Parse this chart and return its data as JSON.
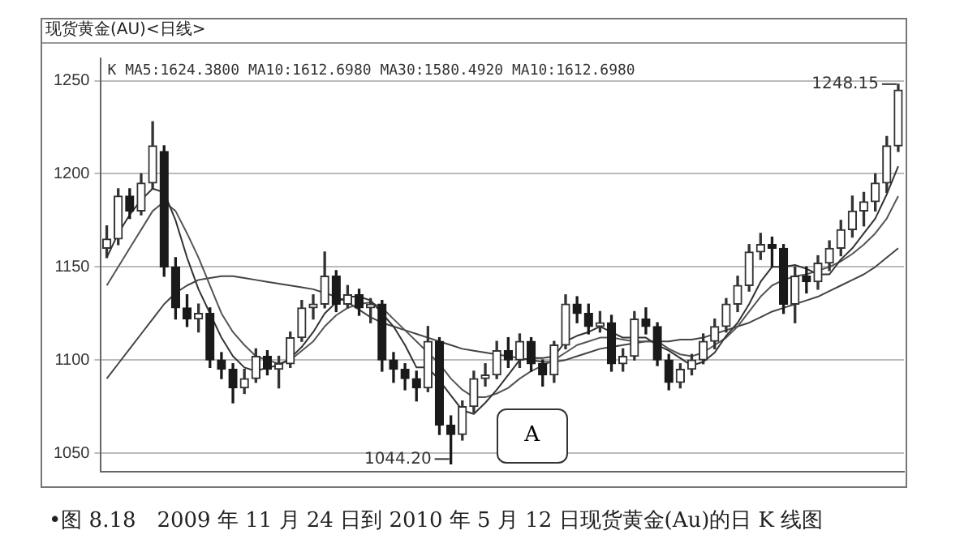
{
  "chart_data": {
    "type": "candlestick",
    "title": "现货黄金(AU)<日线>",
    "categories": [
      null,
      null,
      null,
      null,
      null,
      null,
      null,
      null,
      null,
      null,
      null,
      null,
      null,
      null,
      null,
      null,
      null,
      null,
      null,
      null,
      null,
      null,
      null,
      null,
      null,
      null,
      null,
      null,
      null,
      null,
      null,
      null,
      null,
      null,
      null,
      null,
      null,
      null,
      null,
      null,
      null,
      null,
      null,
      null,
      null,
      null,
      null,
      null,
      null,
      null,
      null,
      null,
      null,
      null,
      null,
      null,
      null,
      null,
      null,
      null,
      null,
      null,
      null,
      null,
      null,
      null,
      null,
      null,
      null,
      null
    ],
    "ohlc": [
      [
        1160,
        1172,
        1155,
        1165
      ],
      [
        1165,
        1192,
        1162,
        1188
      ],
      [
        1188,
        1192,
        1176,
        1180
      ],
      [
        1180,
        1200,
        1178,
        1195
      ],
      [
        1195,
        1228,
        1192,
        1215
      ],
      [
        1212,
        1215,
        1145,
        1150
      ],
      [
        1150,
        1155,
        1122,
        1128
      ],
      [
        1128,
        1135,
        1118,
        1122
      ],
      [
        1122,
        1130,
        1115,
        1125
      ],
      [
        1125,
        1128,
        1096,
        1100
      ],
      [
        1100,
        1104,
        1090,
        1095
      ],
      [
        1095,
        1098,
        1077,
        1085
      ],
      [
        1085,
        1095,
        1082,
        1090
      ],
      [
        1090,
        1106,
        1088,
        1102
      ],
      [
        1102,
        1105,
        1092,
        1095
      ],
      [
        1095,
        1102,
        1085,
        1098
      ],
      [
        1098,
        1115,
        1096,
        1112
      ],
      [
        1112,
        1132,
        1110,
        1128
      ],
      [
        1128,
        1135,
        1122,
        1130
      ],
      [
        1130,
        1158,
        1128,
        1145
      ],
      [
        1145,
        1148,
        1126,
        1130
      ],
      [
        1130,
        1140,
        1128,
        1135
      ],
      [
        1135,
        1138,
        1124,
        1128
      ],
      [
        1128,
        1133,
        1120,
        1130
      ],
      [
        1130,
        1132,
        1094,
        1100
      ],
      [
        1100,
        1104,
        1088,
        1095
      ],
      [
        1095,
        1098,
        1084,
        1090
      ],
      [
        1090,
        1094,
        1078,
        1085
      ],
      [
        1085,
        1118,
        1083,
        1110
      ],
      [
        1110,
        1112,
        1060,
        1065
      ],
      [
        1065,
        1070,
        1044.2,
        1060
      ],
      [
        1060,
        1078,
        1057,
        1075
      ],
      [
        1075,
        1094,
        1072,
        1090
      ],
      [
        1090,
        1098,
        1086,
        1092
      ],
      [
        1092,
        1110,
        1090,
        1105
      ],
      [
        1105,
        1112,
        1096,
        1100
      ],
      [
        1100,
        1114,
        1096,
        1110
      ],
      [
        1110,
        1112,
        1094,
        1098
      ],
      [
        1098,
        1100,
        1086,
        1092
      ],
      [
        1092,
        1110,
        1088,
        1108
      ],
      [
        1108,
        1135,
        1106,
        1130
      ],
      [
        1130,
        1134,
        1120,
        1125
      ],
      [
        1125,
        1130,
        1114,
        1118
      ],
      [
        1118,
        1126,
        1115,
        1120
      ],
      [
        1120,
        1124,
        1094,
        1098
      ],
      [
        1098,
        1106,
        1094,
        1102
      ],
      [
        1102,
        1126,
        1100,
        1122
      ],
      [
        1122,
        1128,
        1114,
        1118
      ],
      [
        1118,
        1120,
        1097,
        1100
      ],
      [
        1100,
        1103,
        1084,
        1088
      ],
      [
        1088,
        1098,
        1085,
        1095
      ],
      [
        1095,
        1103,
        1092,
        1100
      ],
      [
        1100,
        1114,
        1098,
        1110
      ],
      [
        1110,
        1122,
        1106,
        1118
      ],
      [
        1118,
        1133,
        1115,
        1130
      ],
      [
        1130,
        1145,
        1126,
        1140
      ],
      [
        1140,
        1162,
        1137,
        1158
      ],
      [
        1158,
        1168,
        1154,
        1162
      ],
      [
        1162,
        1166,
        1150,
        1160
      ],
      [
        1160,
        1162,
        1125,
        1130
      ],
      [
        1130,
        1150,
        1120,
        1145
      ],
      [
        1145,
        1150,
        1136,
        1142
      ],
      [
        1142,
        1156,
        1138,
        1152
      ],
      [
        1152,
        1164,
        1148,
        1160
      ],
      [
        1160,
        1175,
        1156,
        1170
      ],
      [
        1170,
        1188,
        1166,
        1180
      ],
      [
        1180,
        1190,
        1172,
        1185
      ],
      [
        1185,
        1200,
        1180,
        1195
      ],
      [
        1195,
        1220,
        1190,
        1215
      ],
      [
        1215,
        1248.15,
        1212,
        1245
      ]
    ],
    "series": [
      {
        "type": "line",
        "color": "#333333",
        "values": [
          1155,
          1168,
          1178,
          1186,
          1192,
          1190,
          1175,
          1155,
          1138,
          1125,
          1112,
          1102,
          1096,
          1094,
          1096,
          1097,
          1101,
          1107,
          1115,
          1125,
          1131,
          1134,
          1134,
          1132,
          1125,
          1118,
          1108,
          1096,
          1096,
          1089,
          1081,
          1073,
          1071,
          1077,
          1084,
          1092,
          1100,
          1101,
          1101,
          1102,
          1110,
          1113,
          1115,
          1118,
          1115,
          1112,
          1112,
          1112,
          1108,
          1105,
          1101,
          1097,
          1099,
          1104,
          1113,
          1120,
          1130,
          1142,
          1150,
          1150,
          1151,
          1149,
          1146,
          1146,
          1154,
          1160,
          1168,
          1176,
          1189,
          1204
        ]
      },
      {
        "type": "line",
        "color": "#555555",
        "values": [
          1140,
          1150,
          1160,
          1170,
          1180,
          1185,
          1180,
          1168,
          1155,
          1140,
          1125,
          1115,
          1108,
          1102,
          1100,
          1098,
          1100,
          1105,
          1110,
          1118,
          1124,
          1128,
          1130,
          1131,
          1128,
          1122,
          1116,
          1110,
          1104,
          1098,
          1090,
          1084,
          1080,
          1080,
          1082,
          1085,
          1090,
          1094,
          1097,
          1100,
          1104,
          1108,
          1110,
          1112,
          1112,
          1111,
          1110,
          1110,
          1110,
          1106,
          1103,
          1102,
          1104,
          1108,
          1112,
          1118,
          1126,
          1134,
          1140,
          1143,
          1145,
          1146,
          1148,
          1150,
          1153,
          1157,
          1162,
          1168,
          1176,
          1188
        ]
      },
      {
        "type": "line",
        "color": "#444444",
        "values": [
          1090,
          1098,
          1106,
          1114,
          1122,
          1130,
          1136,
          1140,
          1143,
          1144,
          1145,
          1145,
          1144,
          1143,
          1142,
          1141,
          1140,
          1139,
          1138,
          1136,
          1134,
          1131,
          1127,
          1123,
          1120,
          1118,
          1116,
          1114,
          1112,
          1110,
          1108,
          1106,
          1105,
          1104,
          1103,
          1102,
          1101,
          1100,
          1099,
          1099,
          1100,
          1102,
          1104,
          1106,
          1107,
          1108,
          1109,
          1110,
          1110,
          1110,
          1111,
          1111,
          1112,
          1114,
          1116,
          1118,
          1120,
          1123,
          1126,
          1128,
          1130,
          1132,
          1134,
          1137,
          1140,
          1143,
          1146,
          1150,
          1155,
          1160
        ]
      }
    ],
    "ylim": [
      1040,
      1262
    ],
    "yticks": [
      1050,
      1100,
      1150,
      1200,
      1250
    ],
    "grid": "y",
    "tick_labels": "y",
    "legend": false,
    "annotations": [
      "K MA5:1624.3800 MA10:1612.6980 MA30:1580.4920 MA10:1612.6980",
      "1248.15",
      "1044.20",
      "A",
      "•图 8.18　2009 年 11 月 24 日到 2010 年 5 月 12 日现货黄金(Au)的日 K 线图"
    ]
  }
}
